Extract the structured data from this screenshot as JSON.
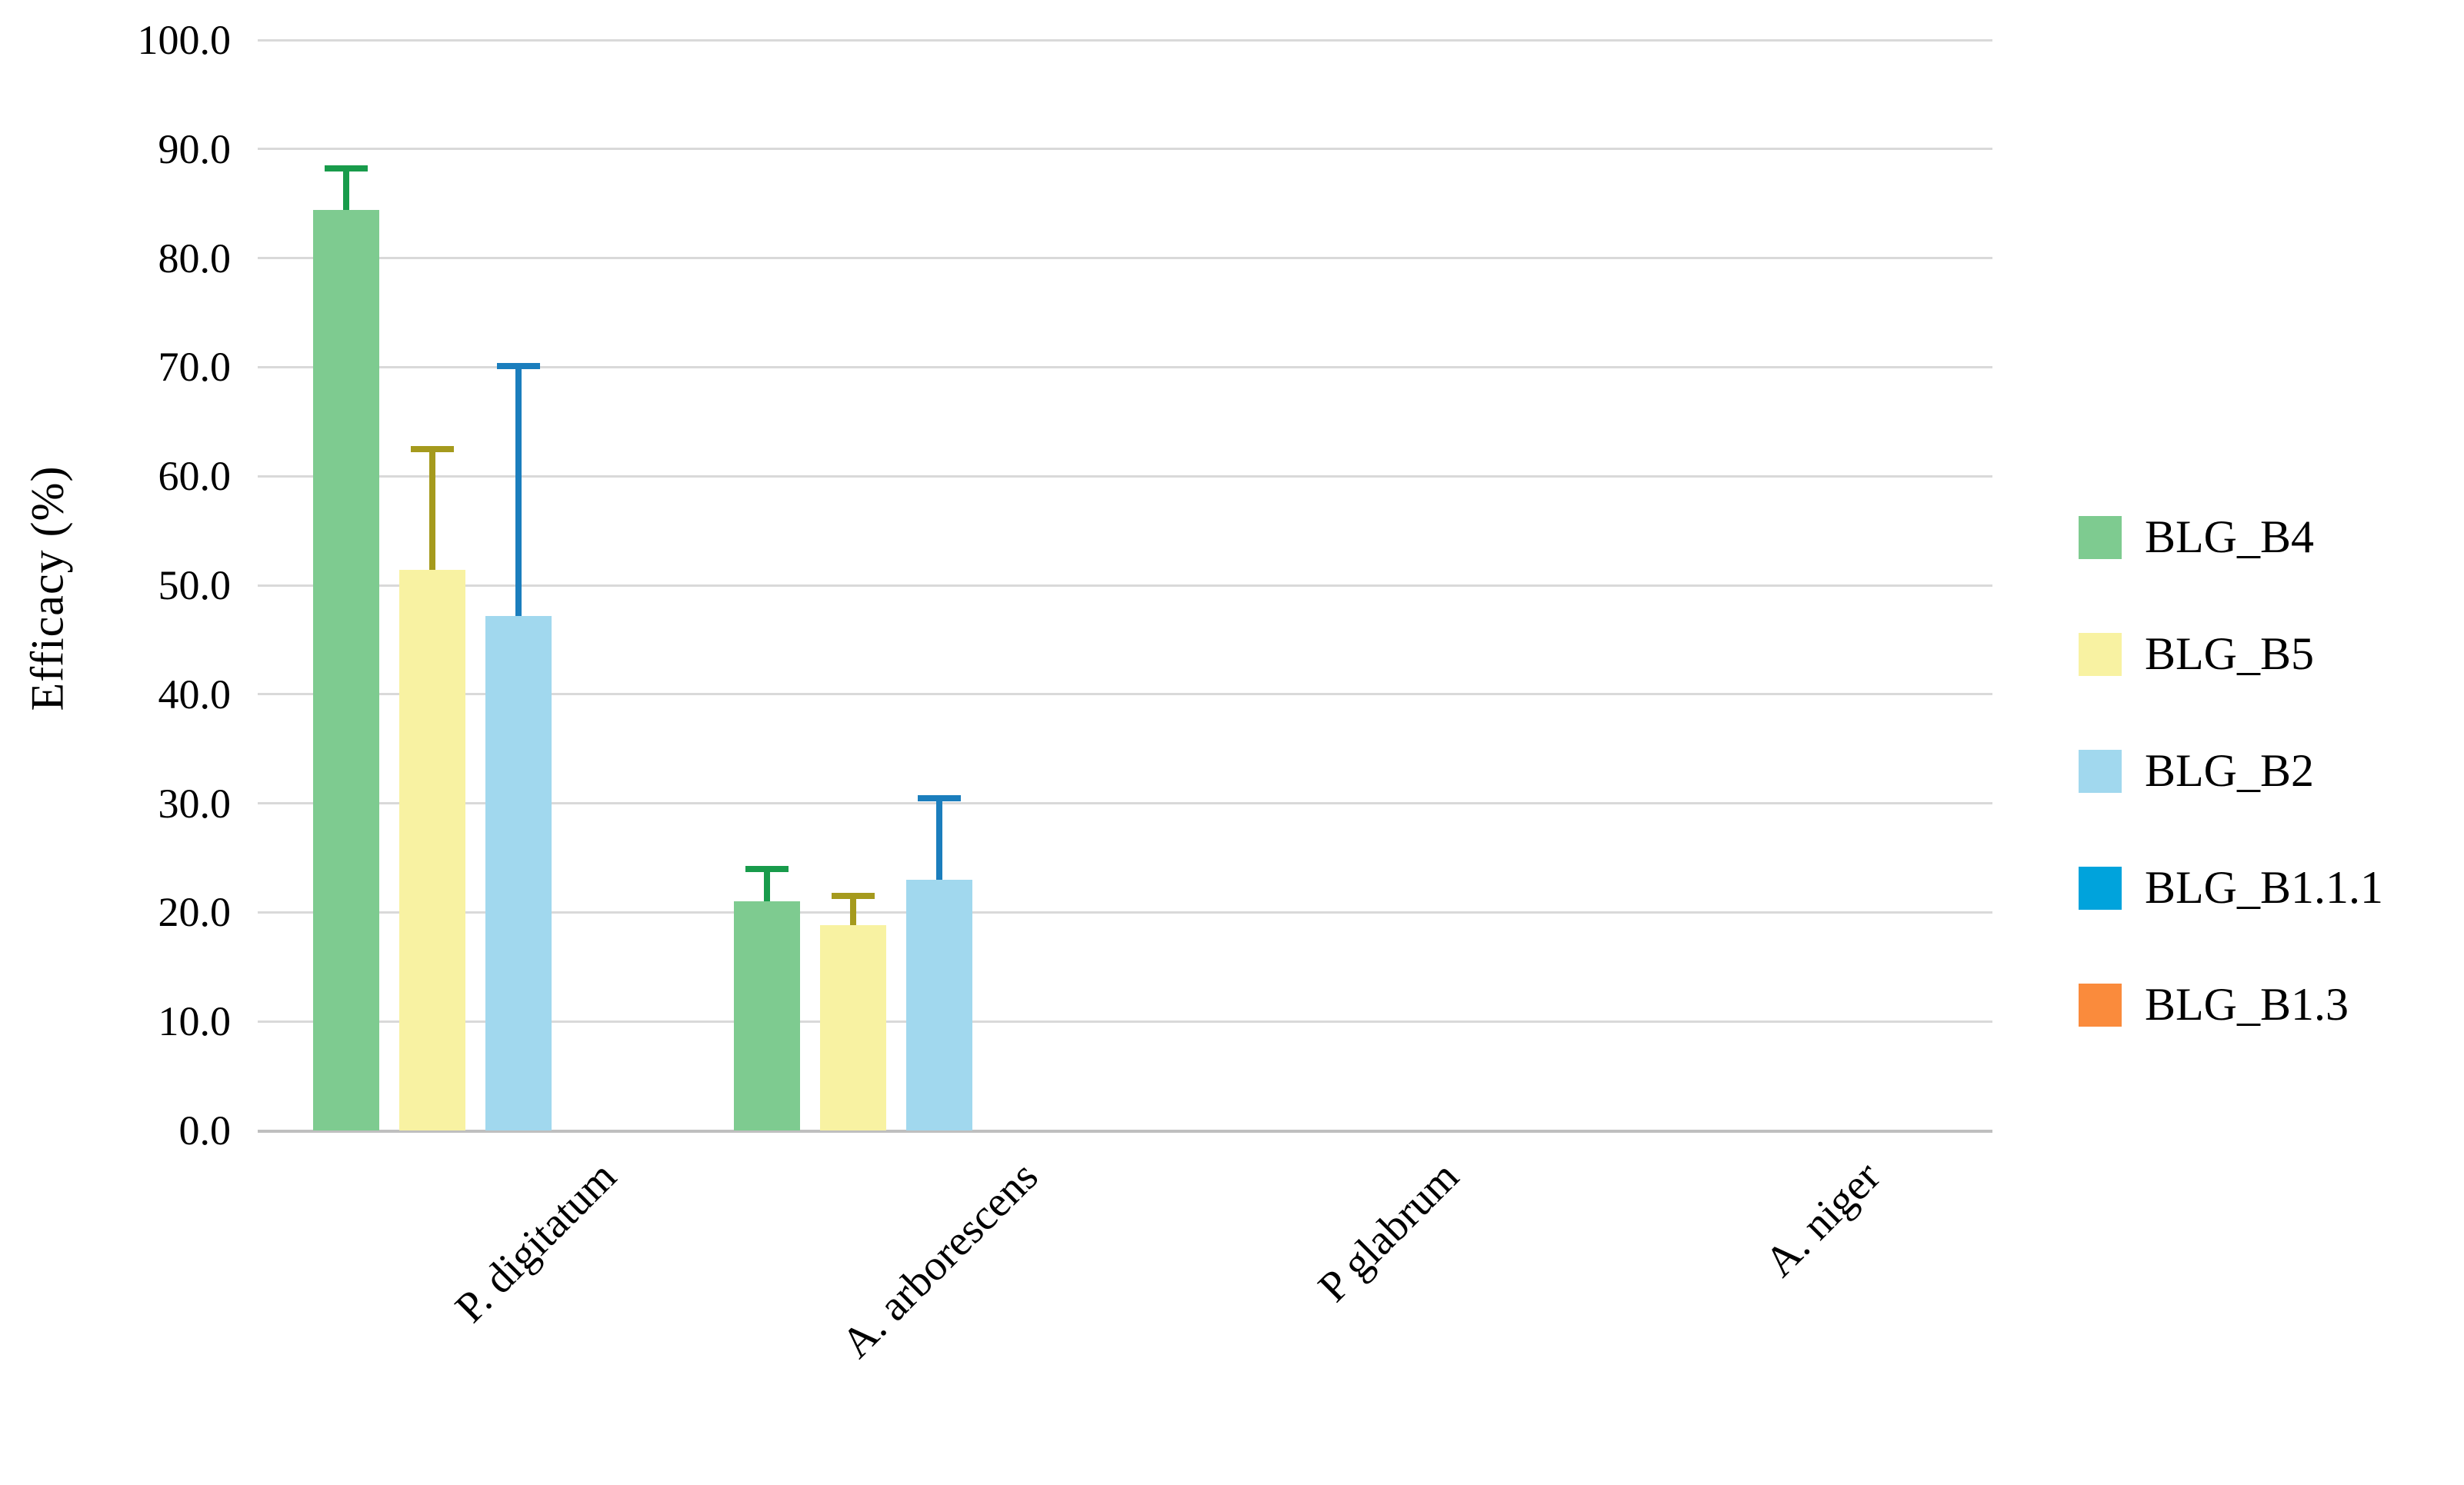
{
  "chart_data": {
    "type": "bar",
    "title": "",
    "xlabel": "",
    "ylabel": "Efficacy (%)",
    "ylim": [
      0,
      100
    ],
    "ytick_step": 10,
    "ytick_labels": [
      "0.0",
      "10.0",
      "20.0",
      "30.0",
      "40.0",
      "50.0",
      "60.0",
      "70.0",
      "80.0",
      "90.0",
      "100.0"
    ],
    "grid": true,
    "legend_position": "right",
    "categories": [
      "P. digitatum",
      "A. arborescens",
      "P glabrum",
      "A. niger"
    ],
    "series": [
      {
        "name": "BLG_B4",
        "color": "#7ECB90",
        "error_color": "#189B4B",
        "values": [
          84.4,
          21.0,
          0,
          0
        ],
        "errors": [
          3.8,
          3.0,
          0,
          0
        ]
      },
      {
        "name": "BLG_B5",
        "color": "#F8F2A2",
        "error_color": "#A59A1D",
        "values": [
          51.4,
          18.8,
          0,
          0
        ],
        "errors": [
          11.1,
          2.7,
          0,
          0
        ]
      },
      {
        "name": "BLG_B2",
        "color": "#A1D8EE",
        "error_color": "#1B7EBD",
        "values": [
          47.2,
          23.0,
          0,
          0
        ],
        "errors": [
          22.9,
          7.5,
          0,
          0
        ]
      },
      {
        "name": "BLG_B1.1.1",
        "color": "#00A3DC",
        "error_color": "#00A3DC",
        "values": [
          0,
          0,
          0,
          0
        ],
        "errors": [
          0,
          0,
          0,
          0
        ]
      },
      {
        "name": "BLG_B1.3",
        "color": "#FA8B3C",
        "error_color": "#FA8B3C",
        "values": [
          0,
          0,
          0,
          0
        ],
        "errors": [
          0,
          0,
          0,
          0
        ]
      }
    ],
    "colors": {
      "background": "#FFFFFF",
      "gridline": "#D9D9D9",
      "axis_line": "#BFBFBF",
      "text": "#000000"
    }
  }
}
